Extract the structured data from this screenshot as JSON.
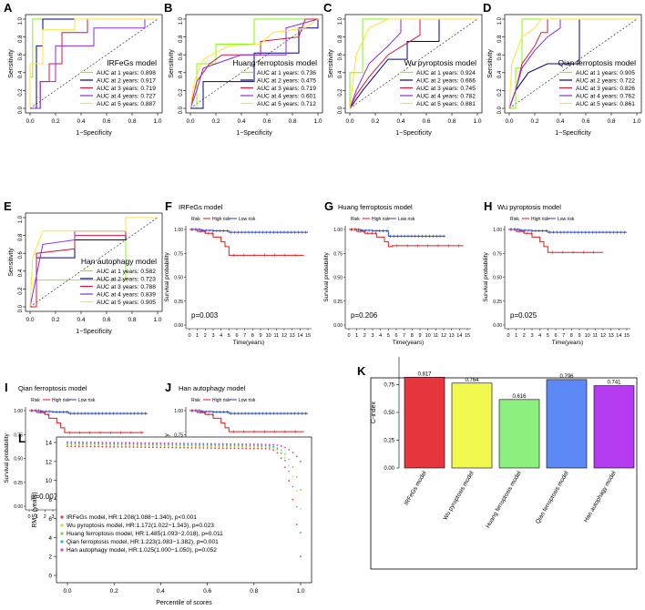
{
  "colors": {
    "y1": "#7CFC00",
    "y2": "#00008B",
    "y3": "#DC143C",
    "y4": "#8A2BE2",
    "y5": "#FFE135",
    "high": "#E31A1C",
    "low": "#1F3FD6",
    "bar_irfegs": "#E8363F",
    "bar_wu": "#F1F84E",
    "bar_huang": "#8BF07D",
    "bar_qian": "#5C89F5",
    "bar_han": "#B53CF0"
  },
  "roc": [
    {
      "letter": "A",
      "title": "IRFeGs model",
      "aucs": [
        "AUC at 1 years: 0.898",
        "AUC at 2 years: 0.917",
        "AUC at 3 years: 0.719",
        "AUC at 4 years: 0.727",
        "AUC at 5 years: 0.887"
      ]
    },
    {
      "letter": "B",
      "title": "Huang ferroptosis model",
      "aucs": [
        "AUC at 1 years: 0.736",
        "AUC at 2 years: 0.475",
        "AUC at 3 years: 0.719",
        "AUC at 4 years: 0.601",
        "AUC at 5 years: 0.712"
      ]
    },
    {
      "letter": "C",
      "title": "Wu pyroptosis model",
      "aucs": [
        "AUC at 1 years: 0.924",
        "AUC at 2 years: 0.666",
        "AUC at 3 years: 0.745",
        "AUC at 4 years: 0.782",
        "AUC at 5 years: 0.881"
      ]
    },
    {
      "letter": "D",
      "title": "Qian ferroptosis model",
      "aucs": [
        "AUC at 1 years: 0.905",
        "AUC at 2 years: 0.722",
        "AUC at 3 years: 0.826",
        "AUC at 4 years: 0.762",
        "AUC at 5 years: 0.861"
      ]
    },
    {
      "letter": "E",
      "title": "Han autophagy model",
      "aucs": [
        "AUC at 1 years: 0.582",
        "AUC at 2 years: 0.723",
        "AUC at 3 years: 0.788",
        "AUC at 4 years: 0.839",
        "AUC at 5 years: 0.905"
      ]
    }
  ],
  "roc_axes": {
    "xlabel": "1−Specificity",
    "ylabel": "Sensitivity",
    "ticks": [
      "0.0",
      "0.2",
      "0.4",
      "0.6",
      "0.8",
      "1.0"
    ]
  },
  "km": [
    {
      "letter": "F",
      "title": "IRFeGs model",
      "pval": "p=0.003",
      "high_end": 0.73,
      "drop_at": 4
    },
    {
      "letter": "G",
      "title": "Huang ferroptosis model",
      "pval": "p=0.206",
      "high_end": 0.83,
      "drop_at": 4.5
    },
    {
      "letter": "H",
      "title": "Wu pyroptosis model",
      "pval": "p=0.025",
      "high_end": 0.76,
      "drop_at": 4
    },
    {
      "letter": "I",
      "title": "Qian ferroptosis model",
      "pval": "p=0.007",
      "high_end": 0.77,
      "drop_at": 3.5
    },
    {
      "letter": "J",
      "title": "Han autophagy model",
      "pval": "p=0.048",
      "high_end": 0.78,
      "drop_at": 4
    }
  ],
  "km_axes": {
    "xlabel": "Time(years)",
    "ylabel": "Survival probability",
    "legend_title": "Risk",
    "high_label": "High risk",
    "low_label": "Low risk",
    "xticks": [
      "0",
      "1",
      "2",
      "3",
      "4",
      "5",
      "6",
      "7",
      "8",
      "9",
      "10",
      "11",
      "12",
      "13",
      "14",
      "15"
    ],
    "yticks": [
      "0.00",
      "0.25",
      "0.50",
      "0.75",
      "1.00"
    ]
  },
  "chart_data": [
    {
      "type": "bar",
      "panel": "K",
      "ylabel": "C-index",
      "categories": [
        "IRFeGs model",
        "Wu pyroptosis model",
        "Huang ferroptosis model",
        "Qian ferroptosis model",
        "Han autophagy model"
      ],
      "values": [
        0.817,
        0.764,
        0.616,
        0.796,
        0.741
      ],
      "value_labels": [
        "0.817",
        "0.764",
        "0.616",
        "0.796",
        "0.741"
      ],
      "yticks": [
        "0.00",
        "0.25",
        "0.50",
        "0.75"
      ],
      "ylim": [
        0,
        1.0
      ]
    },
    {
      "type": "scatter",
      "panel": "L",
      "xlabel": "Percentile of scores",
      "ylabel": "RMS (years)",
      "ylim": [
        0,
        14
      ],
      "xlim": [
        0,
        1
      ],
      "xticks": [
        "0.0",
        "0.2",
        "0.4",
        "0.6",
        "0.8",
        "1.0"
      ],
      "yticks": [
        "0",
        "2",
        "4",
        "6",
        "8",
        "10",
        "12",
        "14"
      ],
      "series": [
        {
          "name": "IRFeGs model, HR:1.208(1.088−1.340), p<0.001",
          "color": "#E8363F",
          "start": 13.6,
          "end": 2.0
        },
        {
          "name": "Wu pyroptosis model, HR:1.172(1.022−1.343), p=0.023",
          "color": "#E6D02E",
          "start": 13.75,
          "end": 7.0
        },
        {
          "name": "Huang ferroptosis model, HR:1.485(1.093−2.018), p=0.011",
          "color": "#6BD65E",
          "start": 13.85,
          "end": 9.0
        },
        {
          "name": "Qian ferroptosis model, HR:1.223(1.083−1.382), p=0.001",
          "color": "#3FA7D6",
          "start": 13.95,
          "end": 4.5
        },
        {
          "name": "Han autophagy model, HR:1.025(1.000−1.050), p=0.052",
          "color": "#D13FD6",
          "start": 14.05,
          "end": 12.0
        }
      ]
    }
  ],
  "panel_letters": {
    "k": "K",
    "l": "L"
  }
}
